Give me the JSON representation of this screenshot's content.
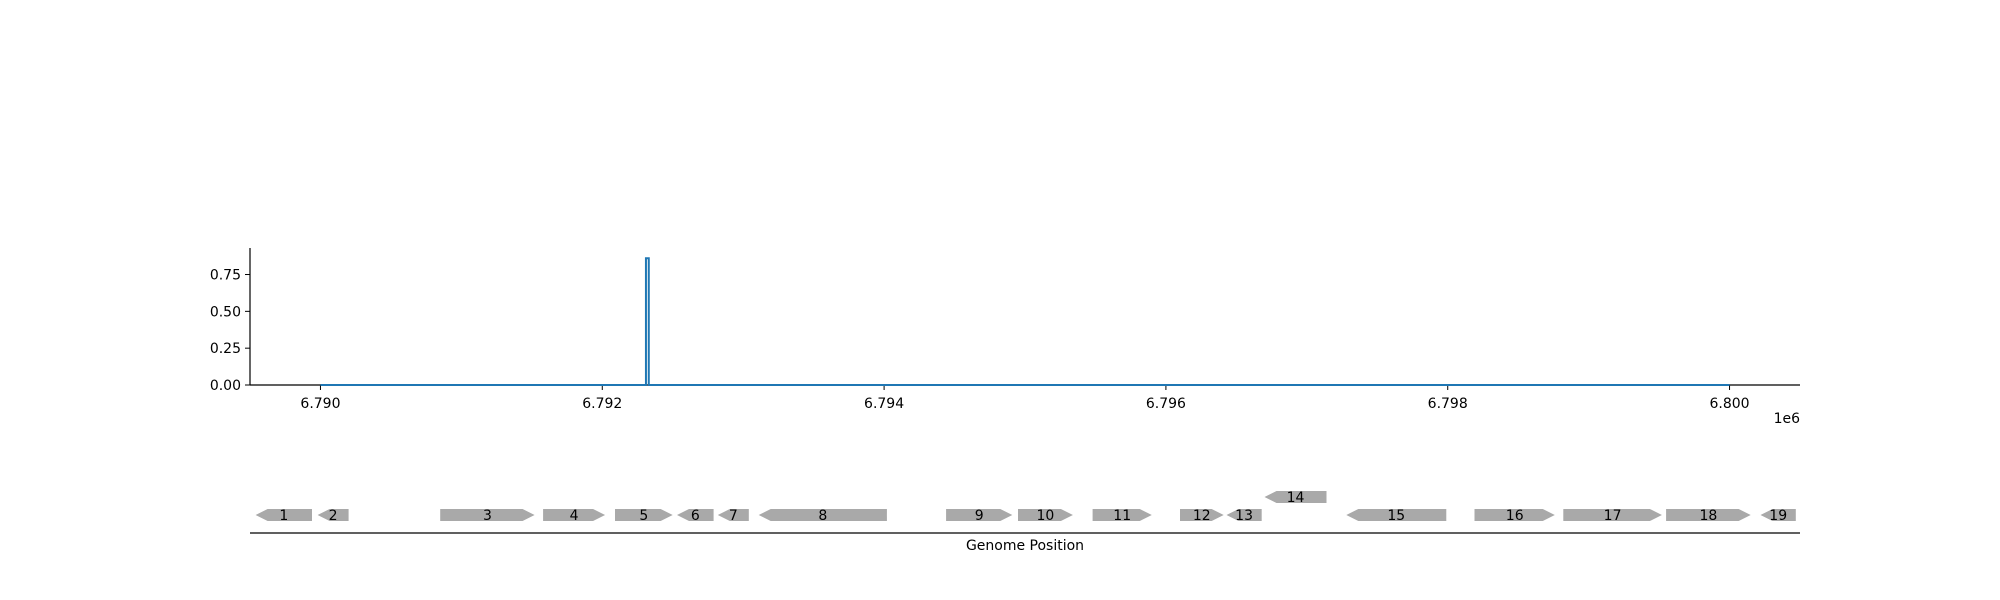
{
  "chart_data": [
    {
      "type": "line",
      "title": "",
      "xlabel": "",
      "ylabel": "",
      "x_offset_label": "1e6",
      "xlim": [
        6789500,
        6800500
      ],
      "ylim": [
        0,
        0.93
      ],
      "x_ticks": [
        6790000,
        6792000,
        6794000,
        6796000,
        6798000,
        6800000
      ],
      "x_tick_labels": [
        "6.790",
        "6.792",
        "6.794",
        "6.796",
        "6.798",
        "6.800"
      ],
      "y_ticks": [
        0,
        0.25,
        0.5,
        0.75
      ],
      "y_tick_labels": [
        "0.00",
        "0.25",
        "0.50",
        "0.75"
      ],
      "grid": false,
      "line_color": "#1f77b4",
      "series": [
        {
          "x": [
            6790000,
            6792310,
            6792310,
            6792330,
            6792330,
            6800000
          ],
          "y": [
            0,
            0,
            0.86,
            0.86,
            0,
            0
          ]
        }
      ]
    },
    {
      "type": "gene-track",
      "xlabel": "Genome Position",
      "gene_color": "#a9a9a9",
      "genes": [
        {
          "label": "1",
          "start": 6789540,
          "end": 6789940,
          "strand": -1,
          "row": 0
        },
        {
          "label": "2",
          "start": 6789980,
          "end": 6790200,
          "strand": -1,
          "row": 0
        },
        {
          "label": "3",
          "start": 6790850,
          "end": 6791520,
          "strand": 1,
          "row": 0
        },
        {
          "label": "4",
          "start": 6791580,
          "end": 6792020,
          "strand": 1,
          "row": 0
        },
        {
          "label": "5",
          "start": 6792090,
          "end": 6792500,
          "strand": 1,
          "row": 0
        },
        {
          "label": "6",
          "start": 6792530,
          "end": 6792790,
          "strand": -1,
          "row": 0
        },
        {
          "label": "7",
          "start": 6792820,
          "end": 6793040,
          "strand": -1,
          "row": 0
        },
        {
          "label": "8",
          "start": 6793110,
          "end": 6794020,
          "strand": -1,
          "row": 0
        },
        {
          "label": "9",
          "start": 6794440,
          "end": 6794910,
          "strand": 1,
          "row": 0
        },
        {
          "label": "10",
          "start": 6794950,
          "end": 6795340,
          "strand": 1,
          "row": 0
        },
        {
          "label": "11",
          "start": 6795480,
          "end": 6795900,
          "strand": 1,
          "row": 0
        },
        {
          "label": "12",
          "start": 6796100,
          "end": 6796410,
          "strand": 1,
          "row": 0
        },
        {
          "label": "13",
          "start": 6796430,
          "end": 6796680,
          "strand": -1,
          "row": 0
        },
        {
          "label": "14",
          "start": 6796700,
          "end": 6797140,
          "strand": -1,
          "row": 1
        },
        {
          "label": "15",
          "start": 6797280,
          "end": 6797990,
          "strand": -1,
          "row": 0
        },
        {
          "label": "16",
          "start": 6798190,
          "end": 6798760,
          "strand": 1,
          "row": 0
        },
        {
          "label": "17",
          "start": 6798820,
          "end": 6799520,
          "strand": 1,
          "row": 0
        },
        {
          "label": "18",
          "start": 6799550,
          "end": 6800150,
          "strand": 1,
          "row": 0
        },
        {
          "label": "19",
          "start": 6800220,
          "end": 6800470,
          "strand": -1,
          "row": 0
        }
      ]
    }
  ]
}
